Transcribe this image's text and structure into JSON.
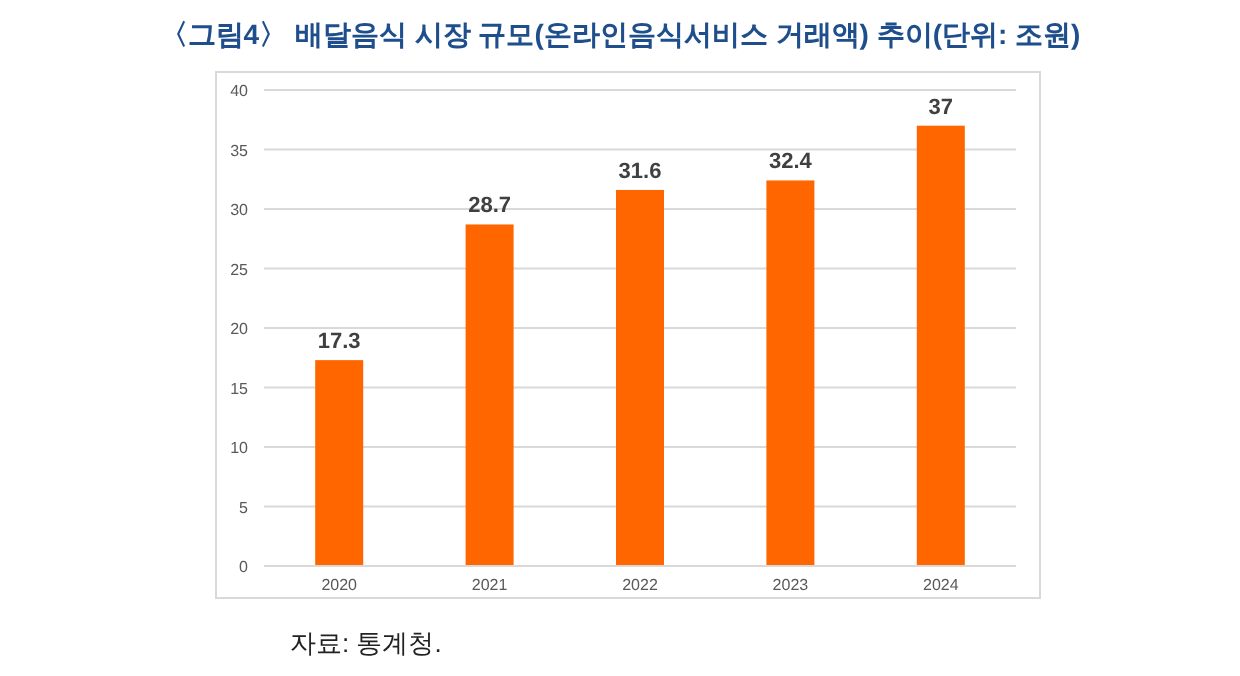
{
  "chart_data": {
    "type": "bar",
    "title": "〈그림4〉 배달음식 시장 규모(온라인음식서비스 거래액) 추이(단위: 조원)",
    "categories": [
      "2020",
      "2021",
      "2022",
      "2023",
      "2024"
    ],
    "values": [
      17.3,
      28.7,
      31.6,
      32.4,
      37
    ],
    "color": "#ff6600",
    "ylim": [
      0,
      40
    ],
    "yticks": [
      0,
      5,
      10,
      15,
      20,
      25,
      30,
      35,
      40
    ],
    "grid": "y",
    "data_labels": true,
    "annotations": [
      "자료: 통계청."
    ]
  }
}
